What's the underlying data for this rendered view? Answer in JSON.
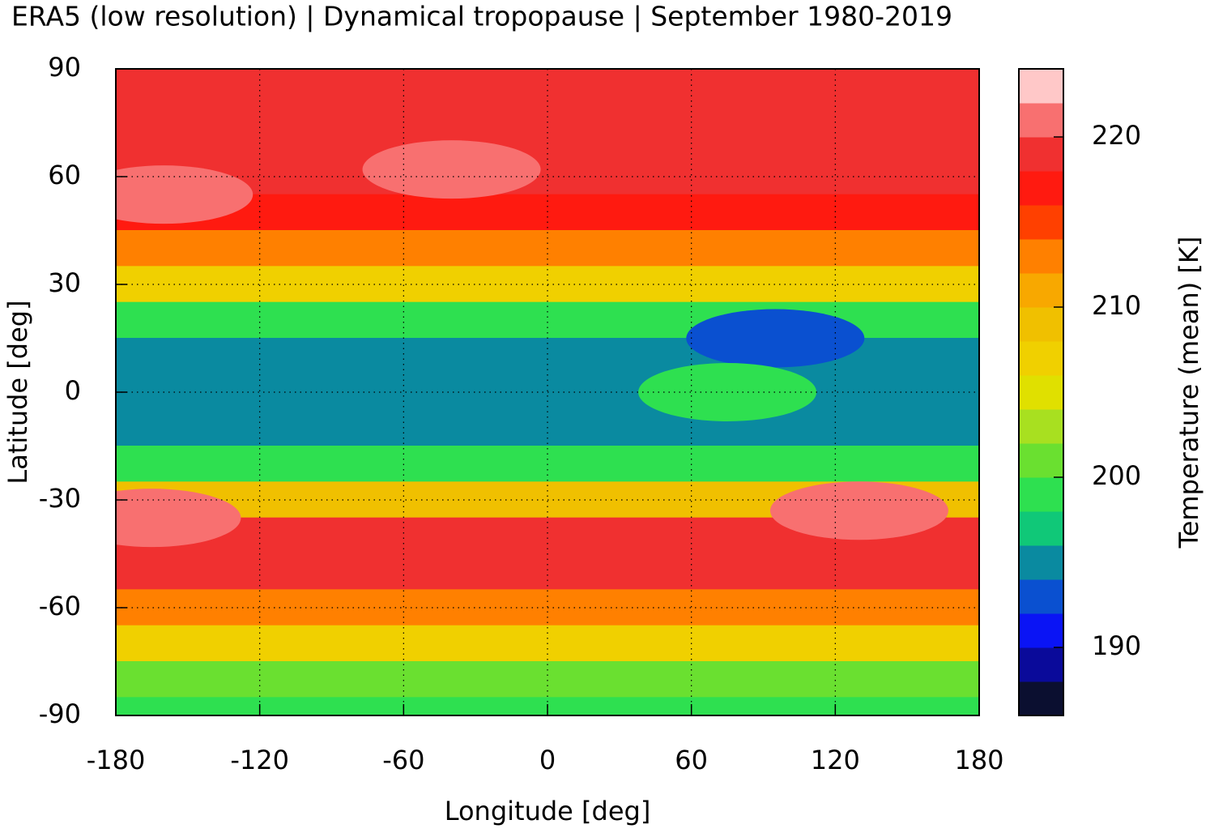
{
  "chart_data": {
    "type": "contour",
    "title": "ERA5 (low resolution) | Dynamical tropopause | September 1980-2019",
    "x_label": "Longitude [deg]",
    "y_label": "Latitude [deg]",
    "colorbar_label": "Temperature (mean) [K]",
    "xlim": [
      -180,
      180
    ],
    "ylim": [
      -90,
      90
    ],
    "xticks": [
      -180,
      -120,
      -60,
      0,
      60,
      120,
      180
    ],
    "yticks": [
      -90,
      -60,
      -30,
      0,
      30,
      60,
      90
    ],
    "grid": true,
    "clim": [
      186,
      224
    ],
    "cticks": [
      190,
      200,
      210,
      220
    ],
    "levels": [
      186,
      188,
      190,
      192,
      194,
      196,
      198,
      200,
      202,
      204,
      206,
      208,
      210,
      212,
      214,
      216,
      218,
      220,
      222,
      224
    ],
    "colors": [
      "#0b0f30",
      "#0a0a9a",
      "#0a14f5",
      "#0a50d0",
      "#0a8aa0",
      "#10c878",
      "#2ee050",
      "#6ae030",
      "#a8e020",
      "#e0e000",
      "#f0d000",
      "#f0c000",
      "#f8a800",
      "#ff8000",
      "#ff4000",
      "#ff1a10",
      "#f03030",
      "#f87070",
      "#ffc8c8"
    ],
    "lat": [
      90,
      80,
      70,
      60,
      50,
      40,
      30,
      20,
      10,
      0,
      -10,
      -20,
      -30,
      -40,
      -50,
      -60,
      -70,
      -80,
      -90
    ],
    "values": [
      219,
      219,
      219,
      219,
      217,
      213,
      206,
      199,
      195,
      195,
      195,
      199,
      208,
      219,
      218,
      213,
      207,
      201,
      199
    ],
    "features": [
      {
        "lon": 95,
        "lat": 15,
        "value": 193
      },
      {
        "lon": 75,
        "lat": 0,
        "value": 199
      },
      {
        "lon": -40,
        "lat": 62,
        "value": 221
      },
      {
        "lon": -160,
        "lat": 55,
        "value": 221
      },
      {
        "lon": -165,
        "lat": -35,
        "value": 221
      },
      {
        "lon": 130,
        "lat": -33,
        "value": 221
      }
    ]
  }
}
